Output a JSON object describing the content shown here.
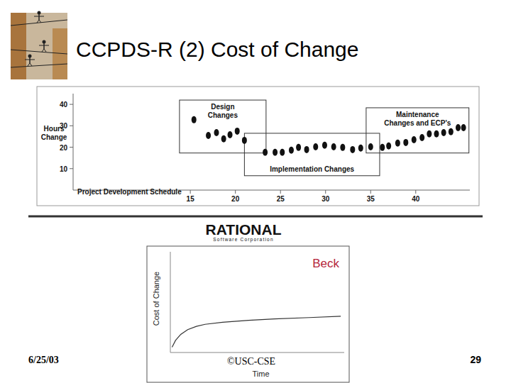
{
  "slide": {
    "title": "CCPDS-R (2) Cost of Change",
    "date": "6/25/03",
    "copyright": "©USC-CSE",
    "page": 29,
    "logo": {
      "name": "RATIONAL",
      "subtitle": "Software Corporation"
    }
  },
  "chart_data": [
    {
      "type": "scatter",
      "x_label": "Project Development Schedule",
      "y_label": "Hours Change",
      "x": [
        15.4,
        17.0,
        17.9,
        18.7,
        19.4,
        20.2,
        21.0,
        23.3,
        24.4,
        25.2,
        26.2,
        27.0,
        27.9,
        28.9,
        29.9,
        30.9,
        31.9,
        33.0,
        33.9,
        35.0,
        36.3,
        37.0,
        38.0,
        38.9,
        39.8,
        40.7,
        41.5,
        42.3,
        43.1,
        43.9,
        44.7,
        45.3
      ],
      "values": [
        32.8,
        25.5,
        26.8,
        23.9,
        25.8,
        27.5,
        23.2,
        17.6,
        17.6,
        17.6,
        18.6,
        19.9,
        18.9,
        20.2,
        20.9,
        20.2,
        19.9,
        18.9,
        19.6,
        20.2,
        19.9,
        20.6,
        21.9,
        22.2,
        23.5,
        24.5,
        26.2,
        26.2,
        26.8,
        27.2,
        29.1,
        29.1
      ],
      "color": "#111111",
      "marker": "ellipse",
      "xlim": [
        2,
        46
      ],
      "xticks": [
        15,
        20,
        25,
        30,
        35,
        40
      ],
      "ylim": [
        0,
        45
      ],
      "yticks": [
        10,
        20,
        30,
        40
      ],
      "grid": false,
      "annotations": [
        {
          "text": "Design Changes",
          "x": [
            13.8,
            23.4
          ],
          "y": [
            17.3,
            42.0
          ]
        },
        {
          "text": "Implementation Changes",
          "x": [
            21.0,
            36.0
          ],
          "y": [
            6.7,
            26.5
          ]
        },
        {
          "text": "Maintenance Changes and ECP's",
          "x": [
            34.5,
            45.9
          ],
          "y": [
            17.3,
            38.4
          ]
        }
      ]
    },
    {
      "type": "line",
      "title": "Beck",
      "x_label": "Time",
      "y_label": "Cost of Change",
      "x": [
        1,
        3,
        6,
        10,
        15,
        20,
        30,
        45,
        60,
        80,
        98
      ],
      "values": [
        5.3,
        12,
        18,
        22.7,
        26,
        28,
        30,
        32,
        33.3,
        34.7,
        36
      ],
      "color": "#333333",
      "xlim": [
        0,
        100
      ],
      "ylim": [
        0,
        100
      ],
      "tick_labels": false,
      "grid": false
    }
  ]
}
